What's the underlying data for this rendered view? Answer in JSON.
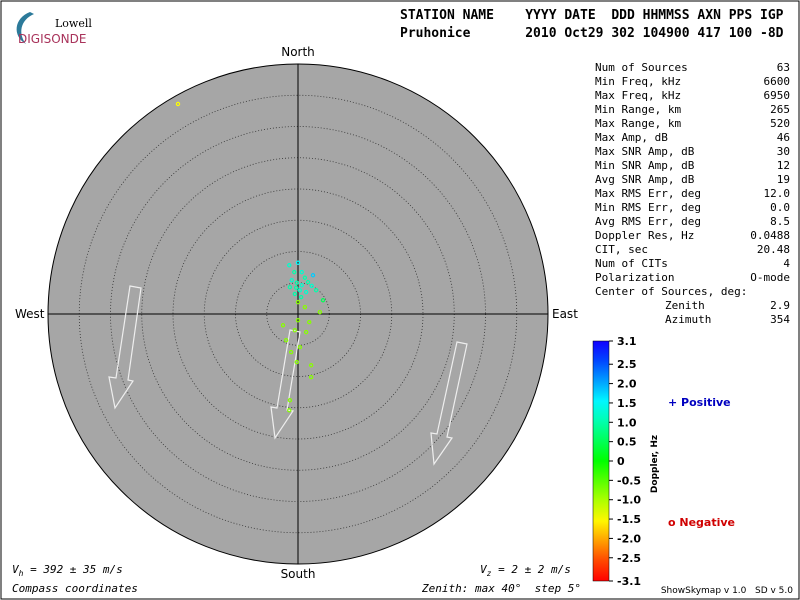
{
  "chart_data": {
    "type": "skymap",
    "logo": {
      "top": "Lowell",
      "bottom": "DIGISONDE"
    },
    "header": {
      "line1": "STATION NAME    YYYY DATE  DDD HHMMSS AXN PPS IGP",
      "line2": "Pruhonice       2010 Oct29 302 104900 417 100 -8D"
    },
    "directions": {
      "north": "North",
      "south": "South",
      "east": "East",
      "west": "West"
    },
    "zenith_max": 40,
    "zenith_step": 5,
    "footer": {
      "vh": {
        "symbol": "V",
        "sub": "h",
        "text": " = 392 ± 35 m/s"
      },
      "vz": {
        "symbol": "V",
        "sub": "z",
        "text": " = 2 ± 2 m/s"
      },
      "coords": "Compass coordinates",
      "zenith_prefix": "Zenith: max ",
      "degree": "°",
      "step_prefix": "  step ",
      "version": "ShowSkymap v 1.0   SD v 5.0"
    },
    "stats": [
      [
        "Num of Sources",
        "63"
      ],
      [
        "Min Freq, kHz",
        "6600"
      ],
      [
        "Max Freq, kHz",
        "6950"
      ],
      [
        "Min Range, km",
        "265"
      ],
      [
        "Max Range, km",
        "520"
      ],
      [
        "Max Amp, dB",
        "46"
      ],
      [
        "Max SNR Amp, dB",
        "30"
      ],
      [
        "Min SNR Amp, dB",
        "12"
      ],
      [
        "Avg SNR Amp, dB",
        "19"
      ],
      [
        "Max RMS Err, deg",
        "12.0"
      ],
      [
        "Min RMS Err, deg",
        "0.0"
      ],
      [
        "Avg RMS Err, deg",
        "8.5"
      ],
      [
        "Doppler Res, Hz",
        "0.0488"
      ],
      [
        "CIT, sec",
        "20.48"
      ],
      [
        "Num of CITs",
        "4"
      ],
      [
        "Polarization",
        "O-mode"
      ],
      [
        "Center of Sources, deg:",
        ""
      ],
      [
        "Zenith",
        "2.9"
      ],
      [
        "Azimuth",
        "354"
      ]
    ],
    "colorbar": {
      "label": "Doppler, Hz",
      "lim": [
        -3.1,
        3.1
      ],
      "ticks": [
        3.1,
        2.5,
        {
          "value": 2,
          "label": "2.0"
        },
        1.5,
        {
          "value": 1,
          "label": "1.0"
        },
        0.5,
        0,
        -0.5,
        {
          "value": -1,
          "label": "-1.0"
        },
        -1.5,
        {
          "value": -2,
          "label": "-2.0"
        },
        -2.5,
        -3.1
      ],
      "positive": "+ Positive",
      "negative": "o Negative"
    },
    "points": [
      {
        "east": -1.4,
        "north": 7.8,
        "doppler": 1.2
      },
      {
        "east": 0,
        "north": 8.2,
        "doppler": 1.5
      },
      {
        "east": -0.6,
        "north": 6.7,
        "doppler": 1.0
      },
      {
        "east": 0.6,
        "north": 6.7,
        "doppler": 1.2
      },
      {
        "east": 2.4,
        "north": 6.2,
        "doppler": 1.8
      },
      {
        "east": 1.1,
        "north": 5.8,
        "doppler": 1.0
      },
      {
        "east": -1.0,
        "north": 5.4,
        "doppler": 1.2
      },
      {
        "east": -0.2,
        "north": 5.0,
        "doppler": 1.0
      },
      {
        "east": 0.6,
        "north": 4.6,
        "doppler": 1.2
      },
      {
        "east": 1.6,
        "north": 5.1,
        "doppler": 1.0
      },
      {
        "east": -0.3,
        "north": 4.2,
        "doppler": 1.0
      },
      {
        "east": 0.3,
        "north": 3.8,
        "doppler": 1.2
      },
      {
        "east": -1.3,
        "north": 4.3,
        "doppler": 1.0
      },
      {
        "east": 1.3,
        "north": 3.5,
        "doppler": 1.2
      },
      {
        "east": 2.9,
        "north": 3.8,
        "doppler": 1.0
      },
      {
        "east": -0.5,
        "north": 3.2,
        "doppler": 1.0
      },
      {
        "east": 0.5,
        "north": 2.7,
        "doppler": 1.0
      },
      {
        "east": 2.2,
        "north": 4.5,
        "doppler": 1.2
      },
      {
        "east": 0,
        "north": 1.9,
        "doppler": -0.8
      },
      {
        "east": 1.1,
        "north": 1.1,
        "doppler": -0.8
      },
      {
        "east": 1.8,
        "north": -1.3,
        "doppler": -0.8
      },
      {
        "east": 4.0,
        "north": 2.2,
        "doppler": 0.5
      },
      {
        "east": 3.5,
        "north": 0.3,
        "doppler": -0.8
      },
      {
        "east": -2.4,
        "north": -1.8,
        "doppler": -0.8
      },
      {
        "east": 0,
        "north": -1.0,
        "doppler": -0.8
      },
      {
        "east": -0.5,
        "north": -2.6,
        "doppler": -0.8
      },
      {
        "east": 1.3,
        "north": -2.9,
        "doppler": -0.8
      },
      {
        "east": -1.9,
        "north": -4.2,
        "doppler": -0.8
      },
      {
        "east": 0.3,
        "north": -5.3,
        "doppler": -0.8
      },
      {
        "east": -1.1,
        "north": -6.1,
        "doppler": -0.8
      },
      {
        "east": -0.2,
        "north": -7.7,
        "doppler": -0.8
      },
      {
        "east": 2.1,
        "north": -8.2,
        "doppler": -0.8
      },
      {
        "east": 2.1,
        "north": -10.1,
        "doppler": -0.8
      },
      {
        "east": -1.3,
        "north": -13.8,
        "doppler": -0.8
      },
      {
        "east": -1.4,
        "north": -15.4,
        "doppler": -0.8
      },
      {
        "east": -19.2,
        "north": 33.6,
        "doppler": -1.5
      }
    ]
  }
}
